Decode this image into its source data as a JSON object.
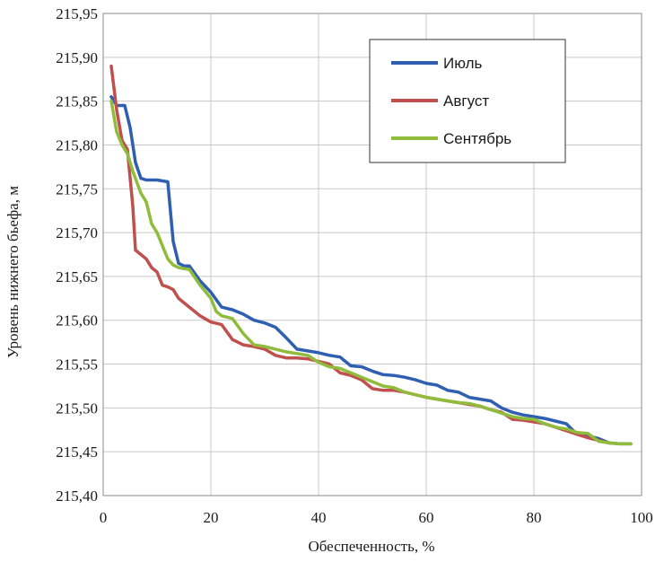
{
  "chart_data": {
    "type": "line",
    "title": "",
    "xlabel": "Обеспеченность, %",
    "ylabel": "Уровень нижнего бьефа, м",
    "xlim": [
      0,
      100
    ],
    "ylim": [
      215.4,
      215.95
    ],
    "xticks": [
      0,
      20,
      40,
      60,
      80,
      100
    ],
    "yticks": [
      215.4,
      215.45,
      215.5,
      215.55,
      215.6,
      215.65,
      215.7,
      215.75,
      215.8,
      215.85,
      215.9,
      215.95
    ],
    "x_tick_labels": [
      "0",
      "20",
      "40",
      "60",
      "80",
      "100"
    ],
    "y_tick_labels": [
      "215,40",
      "215,45",
      "215,50",
      "215,55",
      "215,60",
      "215,65",
      "215,70",
      "215,75",
      "215,80",
      "215,85",
      "215,90",
      "215,95"
    ],
    "grid": true,
    "legend_position": "top-right",
    "series": [
      {
        "name": "Июль",
        "color": "#2e5fb0",
        "points": [
          [
            1.5,
            215.855
          ],
          [
            2.5,
            215.845
          ],
          [
            4,
            215.845
          ],
          [
            5,
            215.82
          ],
          [
            6,
            215.78
          ],
          [
            7,
            215.762
          ],
          [
            8,
            215.76
          ],
          [
            10,
            215.76
          ],
          [
            12,
            215.758
          ],
          [
            13,
            215.69
          ],
          [
            14,
            215.665
          ],
          [
            15,
            215.662
          ],
          [
            16,
            215.662
          ],
          [
            18,
            215.645
          ],
          [
            20,
            215.632
          ],
          [
            22,
            215.615
          ],
          [
            24,
            215.612
          ],
          [
            26,
            215.607
          ],
          [
            28,
            215.6
          ],
          [
            30,
            215.597
          ],
          [
            32,
            215.592
          ],
          [
            34,
            215.58
          ],
          [
            36,
            215.567
          ],
          [
            38,
            215.565
          ],
          [
            40,
            215.563
          ],
          [
            42,
            215.56
          ],
          [
            44,
            215.558
          ],
          [
            46,
            215.548
          ],
          [
            48,
            215.547
          ],
          [
            50,
            215.542
          ],
          [
            52,
            215.538
          ],
          [
            54,
            215.537
          ],
          [
            56,
            215.535
          ],
          [
            58,
            215.532
          ],
          [
            60,
            215.528
          ],
          [
            62,
            215.526
          ],
          [
            64,
            215.52
          ],
          [
            66,
            215.518
          ],
          [
            68,
            215.512
          ],
          [
            70,
            215.51
          ],
          [
            72,
            215.508
          ],
          [
            74,
            215.5
          ],
          [
            76,
            215.495
          ],
          [
            78,
            215.492
          ],
          [
            80,
            215.49
          ],
          [
            82,
            215.488
          ],
          [
            84,
            215.485
          ],
          [
            86,
            215.482
          ],
          [
            88,
            215.47
          ],
          [
            90,
            215.468
          ],
          [
            92,
            215.465
          ],
          [
            94,
            215.46
          ],
          [
            96,
            215.459
          ],
          [
            98,
            215.459
          ]
        ]
      },
      {
        "name": "Август",
        "color": "#c0504d",
        "points": [
          [
            1.5,
            215.89
          ],
          [
            2.5,
            215.84
          ],
          [
            3.5,
            215.805
          ],
          [
            4.5,
            215.795
          ],
          [
            5.5,
            215.73
          ],
          [
            6,
            215.68
          ],
          [
            7,
            215.675
          ],
          [
            8,
            215.67
          ],
          [
            9,
            215.66
          ],
          [
            10,
            215.655
          ],
          [
            11,
            215.64
          ],
          [
            12,
            215.638
          ],
          [
            13,
            215.635
          ],
          [
            14,
            215.625
          ],
          [
            16,
            215.615
          ],
          [
            18,
            215.605
          ],
          [
            20,
            215.598
          ],
          [
            22,
            215.595
          ],
          [
            24,
            215.578
          ],
          [
            26,
            215.572
          ],
          [
            28,
            215.57
          ],
          [
            30,
            215.567
          ],
          [
            32,
            215.56
          ],
          [
            34,
            215.557
          ],
          [
            36,
            215.557
          ],
          [
            38,
            215.556
          ],
          [
            40,
            215.553
          ],
          [
            42,
            215.55
          ],
          [
            44,
            215.54
          ],
          [
            46,
            215.537
          ],
          [
            48,
            215.532
          ],
          [
            50,
            215.522
          ],
          [
            52,
            215.52
          ],
          [
            54,
            215.52
          ],
          [
            56,
            215.518
          ],
          [
            58,
            215.515
          ],
          [
            60,
            215.512
          ],
          [
            62,
            215.51
          ],
          [
            64,
            215.508
          ],
          [
            66,
            215.506
          ],
          [
            68,
            215.504
          ],
          [
            70,
            215.502
          ],
          [
            72,
            215.498
          ],
          [
            74,
            215.495
          ],
          [
            76,
            215.487
          ],
          [
            78,
            215.486
          ],
          [
            80,
            215.484
          ],
          [
            82,
            215.482
          ],
          [
            84,
            215.478
          ],
          [
            86,
            215.474
          ],
          [
            88,
            215.47
          ],
          [
            90,
            215.466
          ],
          [
            92,
            215.463
          ],
          [
            94,
            215.46
          ]
        ]
      },
      {
        "name": "Сентябрь",
        "color": "#8fbc3a",
        "points": [
          [
            1.5,
            215.85
          ],
          [
            2.5,
            215.815
          ],
          [
            3.5,
            215.8
          ],
          [
            4.5,
            215.79
          ],
          [
            5.5,
            215.77
          ],
          [
            7,
            215.745
          ],
          [
            8,
            215.735
          ],
          [
            9,
            215.71
          ],
          [
            10,
            215.7
          ],
          [
            11,
            215.685
          ],
          [
            12,
            215.67
          ],
          [
            13,
            215.663
          ],
          [
            14,
            215.66
          ],
          [
            16,
            215.658
          ],
          [
            18,
            215.64
          ],
          [
            20,
            215.625
          ],
          [
            21,
            215.61
          ],
          [
            22,
            215.605
          ],
          [
            24,
            215.602
          ],
          [
            26,
            215.585
          ],
          [
            28,
            215.572
          ],
          [
            30,
            215.57
          ],
          [
            32,
            215.567
          ],
          [
            34,
            215.564
          ],
          [
            36,
            215.562
          ],
          [
            38,
            215.56
          ],
          [
            40,
            215.552
          ],
          [
            42,
            215.547
          ],
          [
            44,
            215.545
          ],
          [
            46,
            215.54
          ],
          [
            48,
            215.535
          ],
          [
            50,
            215.53
          ],
          [
            52,
            215.525
          ],
          [
            54,
            215.523
          ],
          [
            56,
            215.518
          ],
          [
            58,
            215.515
          ],
          [
            60,
            215.512
          ],
          [
            62,
            215.51
          ],
          [
            64,
            215.508
          ],
          [
            66,
            215.506
          ],
          [
            68,
            215.505
          ],
          [
            70,
            215.502
          ],
          [
            72,
            215.498
          ],
          [
            74,
            215.494
          ],
          [
            76,
            215.49
          ],
          [
            78,
            215.488
          ],
          [
            80,
            215.487
          ],
          [
            82,
            215.482
          ],
          [
            84,
            215.478
          ],
          [
            86,
            215.476
          ],
          [
            88,
            215.472
          ],
          [
            90,
            215.471
          ],
          [
            92,
            215.462
          ],
          [
            94,
            215.46
          ],
          [
            96,
            215.459
          ],
          [
            98,
            215.459
          ]
        ]
      }
    ]
  }
}
